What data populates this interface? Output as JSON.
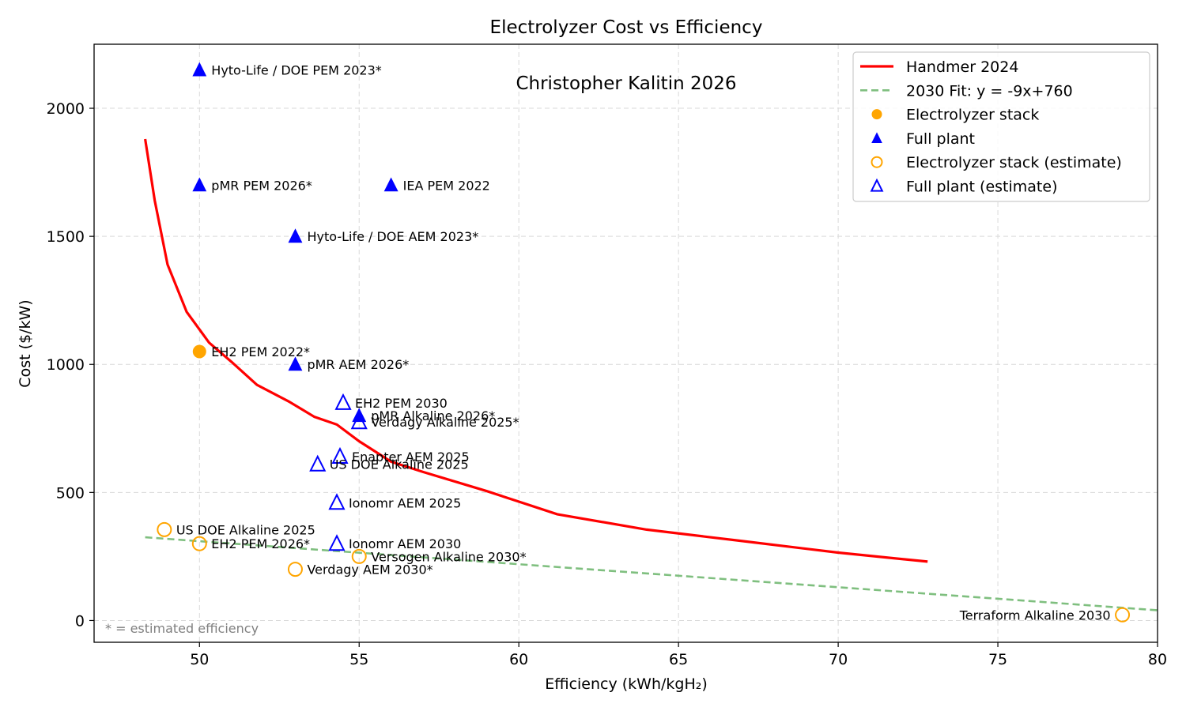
{
  "chart_data": {
    "type": "scatter",
    "title": "Electrolyzer Cost vs Efficiency",
    "subtitle": "Christopher Kalitin 2026",
    "xlabel": "Efficiency (kWh/kgH₂)",
    "ylabel": "Cost ($/kW)",
    "xlim": [
      46.7,
      80
    ],
    "ylim": [
      -85,
      2250
    ],
    "x_ticks": [
      50,
      55,
      60,
      65,
      70,
      75,
      80
    ],
    "y_ticks": [
      0,
      500,
      1000,
      1500,
      2000
    ],
    "grid": true,
    "legend_position": "top-right",
    "footnote": "* = estimated efficiency",
    "colors": {
      "handmer": "#ff0000",
      "fit": "#7fbf7f",
      "stack": "#ffa500",
      "plant": "#0000ff"
    },
    "legend": [
      {
        "label": "Handmer 2024",
        "kind": "line",
        "color": "#ff0000"
      },
      {
        "label": "2030 Fit: y = -9x+760",
        "kind": "dashed",
        "color": "#7fbf7f"
      },
      {
        "label": "Electrolyzer stack",
        "kind": "circle-filled",
        "color": "#ffa500"
      },
      {
        "label": "Full plant",
        "kind": "triangle-filled",
        "color": "#0000ff"
      },
      {
        "label": "Electrolyzer stack (estimate)",
        "kind": "circle-open",
        "color": "#ffa500"
      },
      {
        "label": "Full plant (estimate)",
        "kind": "triangle-open",
        "color": "#0000ff"
      }
    ],
    "series": [
      {
        "name": "Handmer 2024",
        "kind": "line",
        "x": [
          48.3,
          48.6,
          49.0,
          49.6,
          50.3,
          51.0,
          51.8,
          52.8,
          53.6,
          54.3,
          55.0,
          56.0,
          57.0,
          59.0,
          61.2,
          64.0,
          67.0,
          70.0,
          72.8
        ],
        "y": [
          1880,
          1640,
          1390,
          1205,
          1085,
          1010,
          920,
          855,
          795,
          765,
          700,
          620,
          580,
          505,
          415,
          355,
          310,
          265,
          230
        ]
      },
      {
        "name": "2030 Fit: y = -9x+760",
        "kind": "dashed",
        "x": [
          48.3,
          80
        ],
        "y": [
          325,
          40
        ]
      }
    ],
    "points": [
      {
        "label": "Hyto-Life / DOE PEM 2023*",
        "x": 50.0,
        "y": 2150,
        "marker": "triangle-filled"
      },
      {
        "label": "pMR PEM 2026*",
        "x": 50.0,
        "y": 1700,
        "marker": "triangle-filled"
      },
      {
        "label": "IEA PEM 2022",
        "x": 56.0,
        "y": 1700,
        "marker": "triangle-filled"
      },
      {
        "label": "Hyto-Life / DOE AEM 2023*",
        "x": 53.0,
        "y": 1500,
        "marker": "triangle-filled"
      },
      {
        "label": "EH2 PEM 2022*",
        "x": 50.0,
        "y": 1050,
        "marker": "circle-filled"
      },
      {
        "label": "pMR AEM 2026*",
        "x": 53.0,
        "y": 1000,
        "marker": "triangle-filled"
      },
      {
        "label": "EH2 PEM 2030",
        "x": 54.5,
        "y": 850,
        "marker": "triangle-open"
      },
      {
        "label": "pMR Alkaline 2026*",
        "x": 55.0,
        "y": 800,
        "marker": "triangle-filled"
      },
      {
        "label": "Verdagy Alkaline 2025*",
        "x": 55.0,
        "y": 775,
        "marker": "triangle-open"
      },
      {
        "label": "Enapter AEM 2025",
        "x": 54.4,
        "y": 640,
        "marker": "triangle-open"
      },
      {
        "label": "US DOE Alkaline 2025",
        "x": 53.7,
        "y": 610,
        "marker": "triangle-open"
      },
      {
        "label": "Ionomr AEM 2025",
        "x": 54.3,
        "y": 460,
        "marker": "triangle-open"
      },
      {
        "label": "US DOE Alkaline 2025",
        "x": 48.9,
        "y": 355,
        "marker": "circle-open"
      },
      {
        "label": "EH2 PEM 2026*",
        "x": 50.0,
        "y": 300,
        "marker": "circle-open"
      },
      {
        "label": "Ionomr AEM 2030",
        "x": 54.3,
        "y": 300,
        "marker": "triangle-open"
      },
      {
        "label": "Versogen Alkaline 2030*",
        "x": 55.0,
        "y": 250,
        "marker": "circle-open"
      },
      {
        "label": "Verdagy AEM 2030*",
        "x": 53.0,
        "y": 200,
        "marker": "circle-open"
      },
      {
        "label": "Terraform Alkaline 2030",
        "x": 78.9,
        "y": 22,
        "marker": "circle-open",
        "label_side": "left"
      }
    ]
  }
}
